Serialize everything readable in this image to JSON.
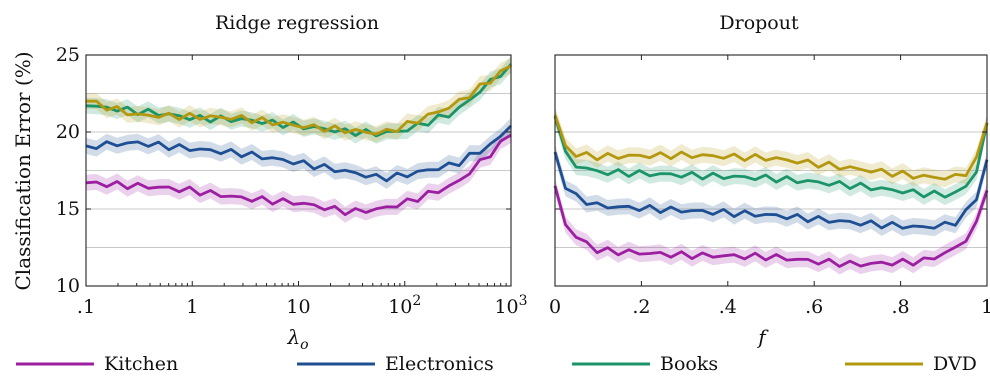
{
  "chart_data": [
    {
      "type": "line",
      "title": "Ridge regression",
      "ylabel": "Classification Error (%)",
      "xlabel": "λo",
      "xscale": "log",
      "xlim": [
        0.1,
        1000
      ],
      "ylim": [
        10,
        25
      ],
      "y_ticks": [
        10,
        15,
        20,
        25
      ],
      "y_gridlines": [
        12.5,
        15,
        17.5,
        20,
        22.5
      ],
      "x_ticks": [
        {
          "value": 0.1,
          "label": ".1"
        },
        {
          "value": 1,
          "label": "1"
        },
        {
          "value": 10,
          "label": "10"
        },
        {
          "value": 100,
          "label": "10",
          "sup": "2"
        },
        {
          "value": 1000,
          "label": "10",
          "sup": "3"
        }
      ],
      "x_points": 42,
      "series": [
        {
          "name": "Kitchen",
          "color": "#9b1fa0",
          "anchors": [
            [
              0.1,
              16.7
            ],
            [
              0.5,
              16.4
            ],
            [
              1,
              16.2
            ],
            [
              3,
              15.7
            ],
            [
              10,
              15.4
            ],
            [
              30,
              14.8
            ],
            [
              60,
              15.0
            ],
            [
              100,
              15.4
            ],
            [
              300,
              16.6
            ],
            [
              1000,
              19.8
            ]
          ]
        },
        {
          "name": "Electronics",
          "color": "#1f4f93",
          "anchors": [
            [
              0.1,
              19.1
            ],
            [
              0.3,
              19.3
            ],
            [
              1,
              18.9
            ],
            [
              3,
              18.6
            ],
            [
              10,
              18.0
            ],
            [
              30,
              17.4
            ],
            [
              60,
              17.0
            ],
            [
              100,
              17.2
            ],
            [
              300,
              17.9
            ],
            [
              700,
              19.3
            ],
            [
              1000,
              20.4
            ]
          ]
        },
        {
          "name": "Books",
          "color": "#1a9468",
          "anchors": [
            [
              0.1,
              21.7
            ],
            [
              0.5,
              21.2
            ],
            [
              1,
              20.9
            ],
            [
              3,
              20.8
            ],
            [
              10,
              20.4
            ],
            [
              30,
              20.0
            ],
            [
              60,
              19.9
            ],
            [
              100,
              20.1
            ],
            [
              300,
              21.3
            ],
            [
              1000,
              24.4
            ]
          ]
        },
        {
          "name": "DVD",
          "color": "#b3980f",
          "anchors": [
            [
              0.1,
              22.0
            ],
            [
              0.3,
              21.1
            ],
            [
              1,
              21.0
            ],
            [
              3,
              20.9
            ],
            [
              10,
              20.4
            ],
            [
              30,
              20.1
            ],
            [
              60,
              19.9
            ],
            [
              100,
              20.4
            ],
            [
              300,
              21.8
            ],
            [
              1000,
              24.3
            ]
          ]
        }
      ]
    },
    {
      "type": "line",
      "title": "Dropout",
      "xlabel": "f",
      "xlim": [
        0,
        1
      ],
      "ylim": [
        10,
        25
      ],
      "y_gridlines": [
        12.5,
        15,
        17.5,
        20,
        22.5
      ],
      "x_ticks": [
        {
          "value": 0,
          "label": "0"
        },
        {
          "value": 0.2,
          "label": ".2"
        },
        {
          "value": 0.4,
          "label": ".4"
        },
        {
          "value": 0.6,
          "label": ".6"
        },
        {
          "value": 0.8,
          "label": ".8"
        },
        {
          "value": 1,
          "label": "1"
        }
      ],
      "x_points": 42,
      "series": [
        {
          "name": "Kitchen",
          "color": "#9b1fa0",
          "anchors": [
            [
              0,
              16.5
            ],
            [
              0.03,
              13.5
            ],
            [
              0.1,
              12.3
            ],
            [
              0.3,
              12.0
            ],
            [
              0.5,
              11.9
            ],
            [
              0.6,
              11.6
            ],
            [
              0.7,
              11.4
            ],
            [
              0.85,
              11.6
            ],
            [
              0.92,
              12.3
            ],
            [
              0.97,
              13.5
            ],
            [
              1,
              16.2
            ]
          ]
        },
        {
          "name": "Electronics",
          "color": "#1f4f93",
          "anchors": [
            [
              0,
              18.7
            ],
            [
              0.03,
              16.0
            ],
            [
              0.1,
              15.2
            ],
            [
              0.3,
              14.9
            ],
            [
              0.5,
              14.6
            ],
            [
              0.7,
              14.1
            ],
            [
              0.85,
              13.8
            ],
            [
              0.92,
              14.0
            ],
            [
              0.97,
              15.2
            ],
            [
              1,
              18.2
            ]
          ]
        },
        {
          "name": "Books",
          "color": "#1a9468",
          "anchors": [
            [
              0,
              21.0
            ],
            [
              0.03,
              18.0
            ],
            [
              0.1,
              17.4
            ],
            [
              0.3,
              17.2
            ],
            [
              0.5,
              17.0
            ],
            [
              0.7,
              16.5
            ],
            [
              0.85,
              16.0
            ],
            [
              0.92,
              15.9
            ],
            [
              0.97,
              16.8
            ],
            [
              1,
              20.6
            ]
          ]
        },
        {
          "name": "DVD",
          "color": "#b3980f",
          "anchors": [
            [
              0,
              21.1
            ],
            [
              0.03,
              18.6
            ],
            [
              0.1,
              18.4
            ],
            [
              0.3,
              18.5
            ],
            [
              0.5,
              18.3
            ],
            [
              0.7,
              17.6
            ],
            [
              0.85,
              17.1
            ],
            [
              0.92,
              17.0
            ],
            [
              0.97,
              17.6
            ],
            [
              1,
              20.6
            ]
          ]
        }
      ]
    }
  ],
  "legend": {
    "placement": "bottom",
    "items": [
      {
        "name": "Kitchen",
        "color": "#9b1fa0"
      },
      {
        "name": "Electronics",
        "color": "#1f4f93"
      },
      {
        "name": "Books",
        "color": "#1a9468"
      },
      {
        "name": "DVD",
        "color": "#b3980f"
      }
    ]
  }
}
